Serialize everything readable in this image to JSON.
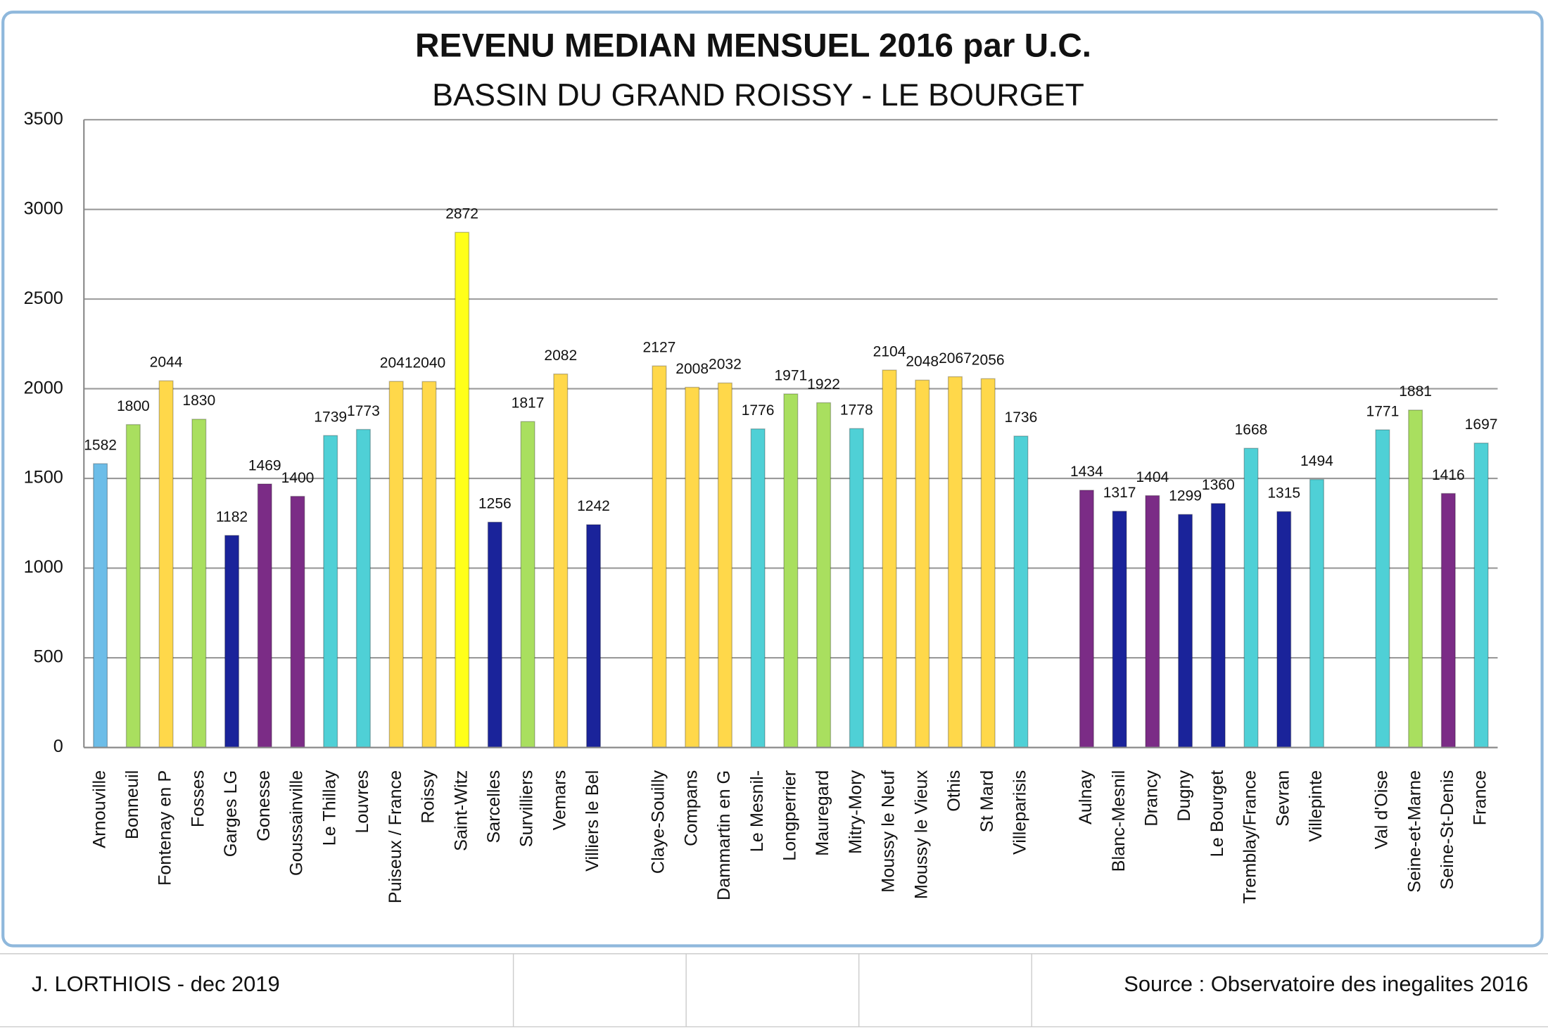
{
  "chart_data": {
    "type": "bar",
    "title": "REVENU MEDIAN MENSUEL 2016 par U.C.",
    "subtitle": "BASSIN DU GRAND ROISSY - LE BOURGET",
    "categories": [
      "Arnouville",
      "Bonneuil",
      "Fontenay en P",
      "Fosses",
      "Garges LG",
      "Gonesse",
      "Goussainville",
      "Le Thillay",
      "Louvres",
      "Puiseux / France",
      "Roissy",
      "Saint-Witz",
      "Sarcelles",
      "Survilliers",
      "Vemars",
      "Villiers le Bel",
      null,
      "Claye-Souilly",
      "Compans",
      "Dammartin en G",
      "Le Mesnil-",
      "Longperrier",
      "Mauregard",
      "Mitry-Mory",
      "Moussy le Neuf",
      "Moussy le Vieux",
      "Othis",
      "St Mard",
      "Villeparisis",
      null,
      "Aulnay",
      "Blanc-Mesnil",
      "Drancy",
      "Dugny",
      "Le Bourget",
      "Tremblay/France",
      "Sevran",
      "Villepinte",
      null,
      "Val d'Oise",
      "Seine-et-Marne",
      "Seine-St-Denis",
      "France"
    ],
    "values": [
      1582,
      1800,
      2044,
      1830,
      1182,
      1469,
      1400,
      1739,
      1773,
      2041,
      2040,
      2872,
      1256,
      1817,
      2082,
      1242,
      null,
      2127,
      2008,
      2032,
      1776,
      1971,
      1922,
      1778,
      2104,
      2048,
      2067,
      2056,
      1736,
      null,
      1434,
      1317,
      1404,
      1299,
      1360,
      1668,
      1315,
      1494,
      null,
      1771,
      1881,
      1416,
      1697
    ],
    "colors": [
      "#6cbde8",
      "#a9df5f",
      "#ffd84a",
      "#a9df5f",
      "#1a239a",
      "#7b2c86",
      "#7b2c86",
      "#4fd0d6",
      "#4fd0d6",
      "#ffd84a",
      "#ffd84a",
      "#ffff1a",
      "#1a239a",
      "#a9df5f",
      "#ffd84a",
      "#1a239a",
      null,
      "#ffd84a",
      "#ffd84a",
      "#ffd84a",
      "#4fd0d6",
      "#a9df5f",
      "#a9df5f",
      "#4fd0d6",
      "#ffd84a",
      "#ffd84a",
      "#ffd84a",
      "#ffd84a",
      "#4fd0d6",
      null,
      "#7b2c86",
      "#1a239a",
      "#7b2c86",
      "#1a239a",
      "#1a239a",
      "#4fd0d6",
      "#1a239a",
      "#4fd0d6",
      null,
      "#4fd0d6",
      "#a9df5f",
      "#7b2c86",
      "#4fd0d6"
    ],
    "ylim": [
      0,
      3500
    ],
    "yticks": [
      0,
      500,
      1000,
      1500,
      2000,
      2500,
      3000,
      3500
    ],
    "grid": true
  },
  "footer": {
    "author": "J. LORTHIOIS - dec 2019",
    "source": "Source : Observatoire des inegalites 2016"
  }
}
